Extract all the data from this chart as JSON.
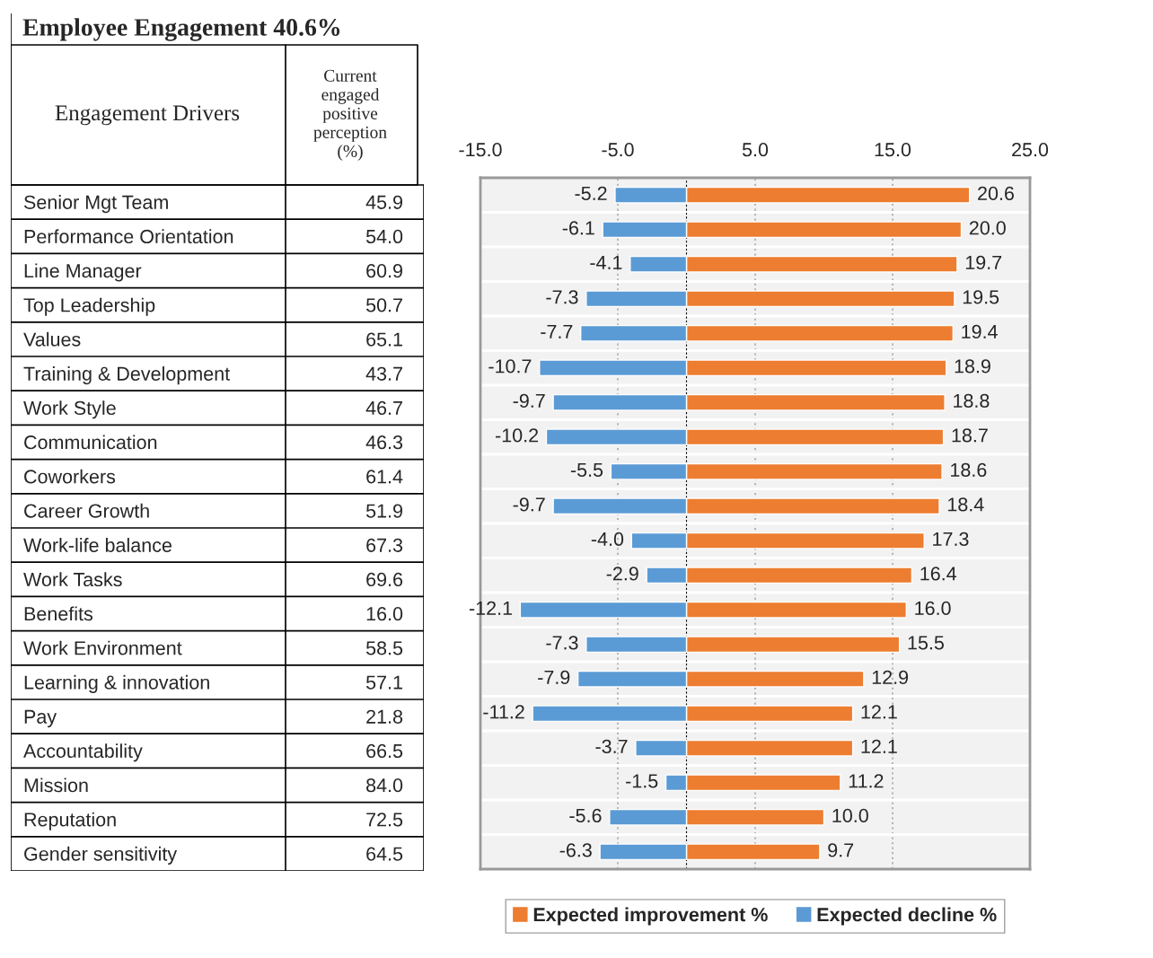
{
  "chart_data": [
    {
      "type": "other",
      "title": "Employee Engagement 40.6%",
      "annotations": [
        "Engagement Drivers",
        "Current\nengaged\npositive\nperception\n(%)"
      ],
      "categories": [
        "Senior Mgt Team",
        "Performance Orientation",
        "Line Manager",
        "Top Leadership",
        "Values",
        "Training & Development",
        "Work Style",
        "Communication",
        "Coworkers",
        "Career Growth",
        "Work-life balance",
        "Work Tasks",
        "Benefits",
        "Work Environment",
        "Learning & innovation",
        "Pay",
        "Accountability",
        "Mission",
        "Reputation",
        "Gender sensitivity"
      ],
      "value_labels": [
        "45.9",
        "54.0",
        "60.9",
        "50.7",
        "65.1",
        "43.7",
        "46.7",
        "46.3",
        "61.4",
        "51.9",
        "67.3",
        "69.6",
        "16.0",
        "58.5",
        "57.1",
        "21.8",
        "66.5",
        "84.0",
        "72.5",
        "64.5"
      ]
    },
    {
      "type": "bar",
      "orientation": "horizontal",
      "stacked": true,
      "categories": [
        null,
        null,
        null,
        null,
        null,
        null,
        null,
        null,
        null,
        null,
        null,
        null,
        null,
        null,
        null,
        null,
        null,
        null,
        null,
        null
      ],
      "series": [
        {
          "name": "Expected improvement %",
          "color": "#ed7d31",
          "values": [
            20.6,
            20.0,
            19.7,
            19.5,
            19.4,
            18.9,
            18.8,
            18.7,
            18.6,
            18.4,
            17.3,
            16.4,
            16.0,
            15.5,
            12.9,
            12.1,
            12.1,
            11.2,
            10.0,
            9.7
          ],
          "value_labels": [
            "20.6",
            "20.0",
            "19.7",
            "19.5",
            "19.4",
            "18.9",
            "18.8",
            "18.7",
            "18.6",
            "18.4",
            "17.3",
            "16.4",
            "16.0",
            "15.5",
            "12.9",
            "12.1",
            "12.1",
            "11.2",
            "10.0",
            "9.7"
          ]
        },
        {
          "name": "Expected decline %",
          "color": "#5b9bd5",
          "values": [
            -5.2,
            -6.1,
            -4.1,
            -7.3,
            -7.7,
            -10.7,
            -9.7,
            -10.2,
            -5.5,
            -9.7,
            -4.0,
            -2.9,
            -12.1,
            -7.3,
            -7.9,
            -11.2,
            -3.7,
            -1.5,
            -5.6,
            -6.3
          ],
          "value_labels": [
            "-5.2",
            "-6.1",
            "-4.1",
            "-7.3",
            "-7.7",
            "-10.7",
            "-9.7",
            "-10.2",
            "-5.5",
            "-9.7",
            "-4.0",
            "-2.9",
            "-12.1",
            "-7.3",
            "-7.9",
            "-11.2",
            "-3.7",
            "-1.5",
            "-5.6",
            "-6.3"
          ]
        }
      ],
      "xlim": [
        -15,
        25
      ],
      "xticks": [
        {
          "value": -15,
          "label": "-15.0"
        },
        {
          "value": -5,
          "label": "-5.0"
        },
        {
          "value": 5,
          "label": "5.0"
        },
        {
          "value": 15,
          "label": "15.0"
        },
        {
          "value": 25,
          "label": "25.0"
        }
      ],
      "ref_lines": [
        {
          "axis": "x",
          "value": 0,
          "color": "#000000",
          "line_style": "dashed"
        }
      ],
      "grid": "x",
      "legend": "bottom",
      "tick_labels": "x"
    }
  ]
}
